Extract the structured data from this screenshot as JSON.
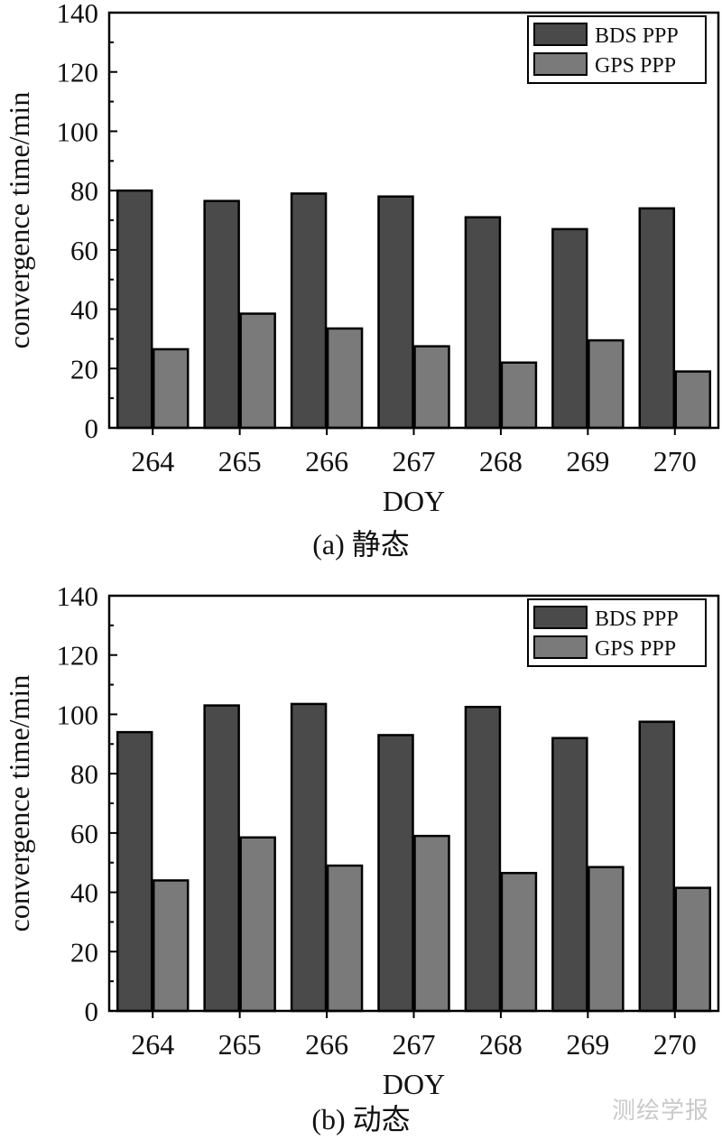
{
  "chart_data": [
    {
      "type": "bar",
      "caption": "(a) 静态",
      "categories": [
        "264",
        "265",
        "266",
        "267",
        "268",
        "269",
        "270"
      ],
      "series": [
        {
          "name": "BDS PPP",
          "color": "#4a4a4a",
          "values": [
            80,
            76.5,
            79,
            78,
            71,
            67,
            74
          ]
        },
        {
          "name": "GPS PPP",
          "color": "#7a7a7a",
          "values": [
            26.5,
            38.5,
            33.5,
            27.5,
            22,
            29.5,
            19
          ]
        }
      ],
      "xlabel": "DOY",
      "ylabel": "convergence time/min",
      "ylim": [
        0,
        140
      ],
      "yticks": [
        "0",
        "20",
        "40",
        "60",
        "80",
        "100",
        "120",
        "140"
      ],
      "legend": "top-right",
      "grid": false
    },
    {
      "type": "bar",
      "caption": "(b) 动态",
      "categories": [
        "264",
        "265",
        "266",
        "267",
        "268",
        "269",
        "270"
      ],
      "series": [
        {
          "name": "BDS PPP",
          "color": "#4a4a4a",
          "values": [
            94,
            103,
            103.5,
            93,
            102.5,
            92,
            97.5
          ]
        },
        {
          "name": "GPS PPP",
          "color": "#7a7a7a",
          "values": [
            44,
            58.5,
            49,
            59,
            46.5,
            48.5,
            41.5
          ]
        }
      ],
      "xlabel": "DOY",
      "ylabel": "convergence time/min",
      "ylim": [
        0,
        140
      ],
      "yticks": [
        "0",
        "20",
        "40",
        "60",
        "80",
        "100",
        "120",
        "140"
      ],
      "legend": "top-right",
      "grid": false
    }
  ],
  "watermark": "测绘学报"
}
